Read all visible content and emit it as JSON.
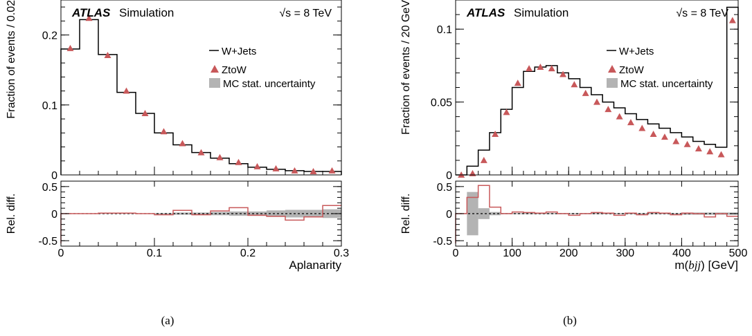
{
  "chart_data": [
    {
      "type": "histogram-with-ratio",
      "caption": "(a)",
      "experiment": "ATLAS",
      "status": "Simulation",
      "energy_label": "√s = 8 TeV",
      "xlabel": "Aplanarity",
      "ylabel": "Fraction of events / 0.02",
      "ratio_ylabel": "Rel. diff.",
      "xlim": [
        0,
        0.3
      ],
      "ylim": [
        0,
        0.25
      ],
      "ratio_ylim": [
        -0.6,
        0.6
      ],
      "xticks": [
        "0",
        "0.1",
        "0.2",
        "0.3"
      ],
      "yticks": [
        "0",
        "0.1",
        "0.2"
      ],
      "ratio_yticks": [
        "-0.5",
        "0",
        "0.5"
      ],
      "legend": [
        "W+Jets",
        "ZtoW",
        "MC stat. uncertainty"
      ],
      "legend_position": "top-right",
      "bin_edges": [
        0,
        0.02,
        0.04,
        0.06,
        0.08,
        0.1,
        0.12,
        0.14,
        0.16,
        0.18,
        0.2,
        0.22,
        0.24,
        0.26,
        0.28,
        0.3
      ],
      "series": [
        {
          "name": "W+Jets",
          "style": "histogram",
          "values": [
            0.18,
            0.222,
            0.172,
            0.118,
            0.088,
            0.06,
            0.043,
            0.032,
            0.024,
            0.016,
            0.011,
            0.008,
            0.006,
            0.005,
            0.005
          ]
        },
        {
          "name": "ZtoW",
          "style": "markers",
          "values": [
            0.181,
            0.224,
            0.171,
            0.12,
            0.088,
            0.062,
            0.045,
            0.032,
            0.025,
            0.018,
            0.012,
            0.009,
            0.006,
            0.005,
            0.006
          ]
        }
      ],
      "ratio": [
        0.0,
        0.0,
        0.01,
        0.01,
        0.0,
        -0.02,
        0.06,
        -0.02,
        0.05,
        0.11,
        -0.03,
        -0.05,
        -0.12,
        -0.06,
        0.15
      ],
      "mc_uncertainty": [
        0.0,
        0.0,
        0.005,
        0.005,
        0.005,
        0.01,
        0.02,
        0.02,
        0.03,
        0.04,
        0.04,
        0.06,
        0.07,
        0.07,
        0.08
      ]
    },
    {
      "type": "histogram-with-ratio",
      "caption": "(b)",
      "experiment": "ATLAS",
      "status": "Simulation",
      "energy_label": "√s = 8 TeV",
      "xlabel_prefix": "m(",
      "xlabel_var": "bjj",
      "xlabel_suffix": ") [GeV]",
      "ylabel": "Fraction of events / 20 GeV",
      "ratio_ylabel": "Rel. diff.",
      "xlim": [
        0,
        500
      ],
      "ylim": [
        0,
        0.12
      ],
      "ratio_ylim": [
        -0.6,
        0.6
      ],
      "xticks": [
        "0",
        "100",
        "200",
        "300",
        "400",
        "500"
      ],
      "yticks": [
        "0",
        "0.05",
        "0.1"
      ],
      "ratio_yticks": [
        "-0.5",
        "0",
        "0.5"
      ],
      "legend": [
        "W+Jets",
        "ZtoW",
        "MC stat. uncertainty"
      ],
      "legend_position": "top-right",
      "bin_edges": [
        0,
        20,
        40,
        60,
        80,
        100,
        120,
        140,
        160,
        180,
        200,
        220,
        240,
        260,
        280,
        300,
        320,
        340,
        360,
        380,
        400,
        420,
        440,
        460,
        480,
        500
      ],
      "series": [
        {
          "name": "W+Jets",
          "style": "histogram",
          "values": [
            0.0,
            0.006,
            0.017,
            0.029,
            0.045,
            0.06,
            0.071,
            0.074,
            0.075,
            0.07,
            0.066,
            0.06,
            0.055,
            0.05,
            0.046,
            0.042,
            0.038,
            0.035,
            0.032,
            0.029,
            0.026,
            0.023,
            0.021,
            0.019,
            0.115
          ]
        },
        {
          "name": "ZtoW",
          "style": "markers",
          "values": [
            0.0,
            0.001,
            0.01,
            0.028,
            0.043,
            0.063,
            0.073,
            0.074,
            0.073,
            0.069,
            0.062,
            0.056,
            0.05,
            0.045,
            0.04,
            0.036,
            0.032,
            0.028,
            0.026,
            0.023,
            0.021,
            0.018,
            0.016,
            0.014,
            0.106
          ]
        }
      ],
      "ratio": [
        0.0,
        0.3,
        0.52,
        0.12,
        0.0,
        0.03,
        0.02,
        0.01,
        0.03,
        0.0,
        -0.03,
        0.0,
        0.02,
        0.01,
        -0.03,
        0.01,
        -0.02,
        0.02,
        0.01,
        -0.02,
        0.01,
        0.0,
        -0.06,
        0.0,
        -0.05
      ],
      "mc_uncertainty": [
        0.0,
        0.4,
        0.1,
        0.03,
        0.01,
        0.01,
        0.01,
        0.01,
        0.01,
        0.01,
        0.01,
        0.01,
        0.01,
        0.01,
        0.01,
        0.01,
        0.01,
        0.01,
        0.01,
        0.01,
        0.02,
        0.02,
        0.02,
        0.02,
        0.02
      ]
    }
  ]
}
